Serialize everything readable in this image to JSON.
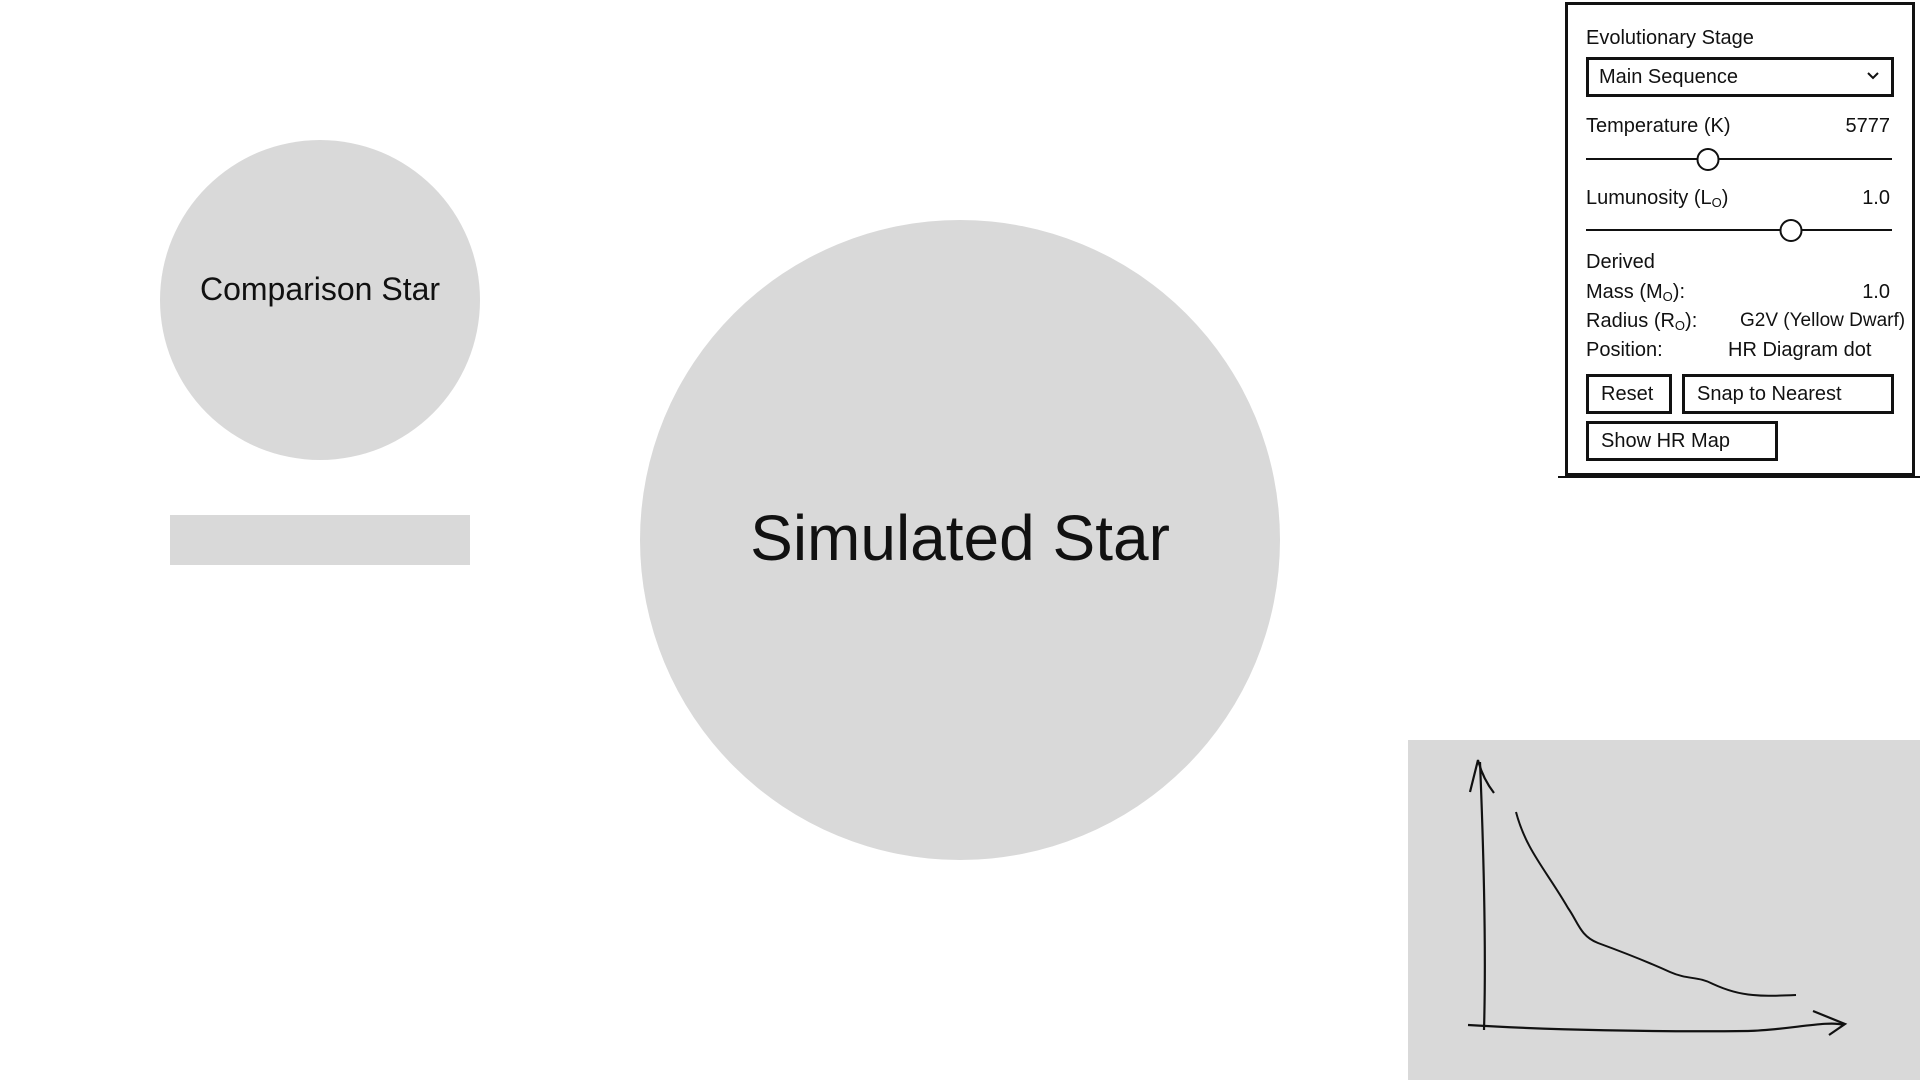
{
  "comparison_star": {
    "label": "Comparison Star"
  },
  "simulated_star": {
    "label": "Simulated Star"
  },
  "panel": {
    "stage_label": "Evolutionary Stage",
    "stage_selected": "Main Sequence",
    "temperature": {
      "label": "Temperature (K)",
      "value": "5777",
      "level": 0.4
    },
    "luminosity": {
      "label": "Lumunosity (L",
      "label_sub": "O",
      "label_end": ")",
      "value": "1.0",
      "level": 0.67
    },
    "derived": {
      "heading": "Derived",
      "mass_label": "Mass (M",
      "mass_sub": "O",
      "mass_end": "):",
      "mass_value": "1.0",
      "radius_label": "Radius (R",
      "radius_sub": "O",
      "radius_end": "):",
      "radius_value": "G2V (Yellow Dwarf)",
      "position_label": "Position:",
      "position_value": "HR Diagram dot"
    },
    "buttons": {
      "reset": "Reset",
      "snap": "Snap to Nearest",
      "show_hr": "Show HR Map"
    }
  },
  "colors": {
    "placeholder_gray": "#d9d9d9",
    "ink": "#111111"
  },
  "icons": [
    "chevron-down-icon"
  ]
}
